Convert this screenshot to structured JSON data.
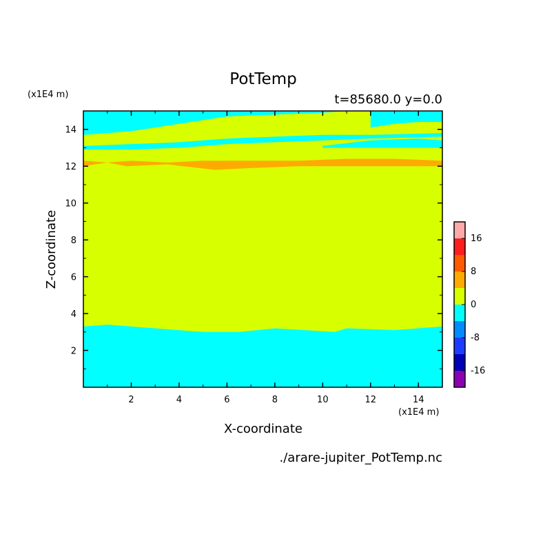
{
  "chart_data": {
    "type": "heatmap",
    "title": "PotTemp",
    "subtitle": "t=85680.0 y=0.0",
    "xlabel": "X-coordinate",
    "ylabel": "Z-coordinate",
    "x_unit_label": "(x1E4 m)",
    "y_unit_label": "(x1E4 m)",
    "source_label": "./arare-jupiter_PotTemp.nc",
    "xlim": [
      0,
      15
    ],
    "ylim": [
      0,
      15
    ],
    "x_ticks": [
      2,
      4,
      6,
      8,
      10,
      12,
      14
    ],
    "y_ticks": [
      2,
      4,
      6,
      8,
      10,
      12,
      14
    ],
    "colorbar": {
      "levels": [
        -20,
        -16,
        -12,
        -8,
        -4,
        0,
        4,
        8,
        12,
        16,
        20
      ],
      "colors": [
        "#8c00b4",
        "#0000b9",
        "#1e3cff",
        "#008cff",
        "#00ffff",
        "#d7ff00",
        "#ffaa00",
        "#ff5a00",
        "#ff1e1e",
        "#ffaaaa"
      ],
      "tick_labels": [
        "-16",
        "-8",
        "0",
        "8",
        "16"
      ],
      "tick_values": [
        -16,
        -8,
        0,
        8,
        16
      ]
    },
    "fields": [
      {
        "name": "bottom_cold_layer",
        "value_range": [
          -4,
          0
        ],
        "color": "#00ffff",
        "lower": [
          [
            0,
            0
          ],
          [
            15,
            0
          ]
        ],
        "upper": [
          [
            0,
            3.3
          ],
          [
            1,
            3.4
          ],
          [
            3,
            3.2
          ],
          [
            5,
            3.0
          ],
          [
            6.5,
            3.0
          ],
          [
            8,
            3.2
          ],
          [
            10.5,
            3.0
          ],
          [
            11,
            3.2
          ],
          [
            13,
            3.1
          ],
          [
            15,
            3.3
          ]
        ]
      },
      {
        "name": "warm_band_12km",
        "value_range": [
          4,
          8
        ],
        "color": "#ffaa00",
        "lower": [
          [
            0,
            12.0
          ],
          [
            1,
            12.2
          ],
          [
            1.8,
            12.0
          ],
          [
            3.5,
            12.1
          ],
          [
            5.5,
            11.8
          ],
          [
            7,
            11.9
          ],
          [
            9,
            12.0
          ],
          [
            11,
            12.0
          ],
          [
            13,
            12.0
          ],
          [
            15,
            12.0
          ]
        ],
        "upper": [
          [
            0,
            12.3
          ],
          [
            1,
            12.2
          ],
          [
            2,
            12.3
          ],
          [
            3.5,
            12.2
          ],
          [
            5,
            12.3
          ],
          [
            7,
            12.3
          ],
          [
            9,
            12.3
          ],
          [
            11,
            12.4
          ],
          [
            13,
            12.4
          ],
          [
            15,
            12.3
          ]
        ]
      },
      {
        "name": "cold_band_13km",
        "value_range": [
          -4,
          0
        ],
        "color": "#00ffff",
        "lower": [
          [
            0,
            12.9
          ],
          [
            2,
            12.9
          ],
          [
            4,
            13.0
          ],
          [
            6,
            13.2
          ],
          [
            8,
            13.3
          ],
          [
            10,
            13.4
          ],
          [
            12,
            13.5
          ],
          [
            15,
            13.6
          ]
        ],
        "upper": [
          [
            0,
            13.1
          ],
          [
            2,
            13.2
          ],
          [
            4,
            13.3
          ],
          [
            6,
            13.5
          ],
          [
            8,
            13.6
          ],
          [
            10,
            13.7
          ],
          [
            12,
            13.7
          ],
          [
            15,
            13.8
          ]
        ]
      },
      {
        "name": "cold_band_right",
        "value_range": [
          -4,
          0
        ],
        "color": "#00ffff",
        "lower": [
          [
            10,
            13.0
          ],
          [
            12,
            13.0
          ],
          [
            14,
            13.0
          ],
          [
            15,
            13.0
          ]
        ],
        "upper": [
          [
            10,
            13.1
          ],
          [
            12,
            13.4
          ],
          [
            14,
            13.5
          ],
          [
            15,
            13.4
          ]
        ]
      },
      {
        "name": "top_cold_layer",
        "value_range": [
          -4,
          0
        ],
        "color": "#00ffff",
        "lower": [
          [
            0,
            13.7
          ],
          [
            2,
            13.9
          ],
          [
            4,
            14.3
          ],
          [
            6,
            14.7
          ],
          [
            8,
            14.8
          ],
          [
            10,
            14.9
          ],
          [
            11,
            15.0
          ],
          [
            15,
            15.0
          ]
        ],
        "upper": [
          [
            0,
            15.0
          ],
          [
            11,
            15.0
          ],
          [
            15,
            15.0
          ]
        ]
      },
      {
        "name": "top_right_cold",
        "value_range": [
          -4,
          0
        ],
        "color": "#00ffff",
        "lower": [
          [
            12,
            14.1
          ],
          [
            13,
            14.3
          ],
          [
            14,
            14.4
          ],
          [
            15,
            14.4
          ]
        ],
        "upper": [
          [
            12,
            15.0
          ],
          [
            15,
            15.0
          ]
        ]
      }
    ],
    "background": {
      "value_range": [
        0,
        4
      ],
      "color": "#d7ff00"
    },
    "grid": false,
    "legend": "right"
  }
}
